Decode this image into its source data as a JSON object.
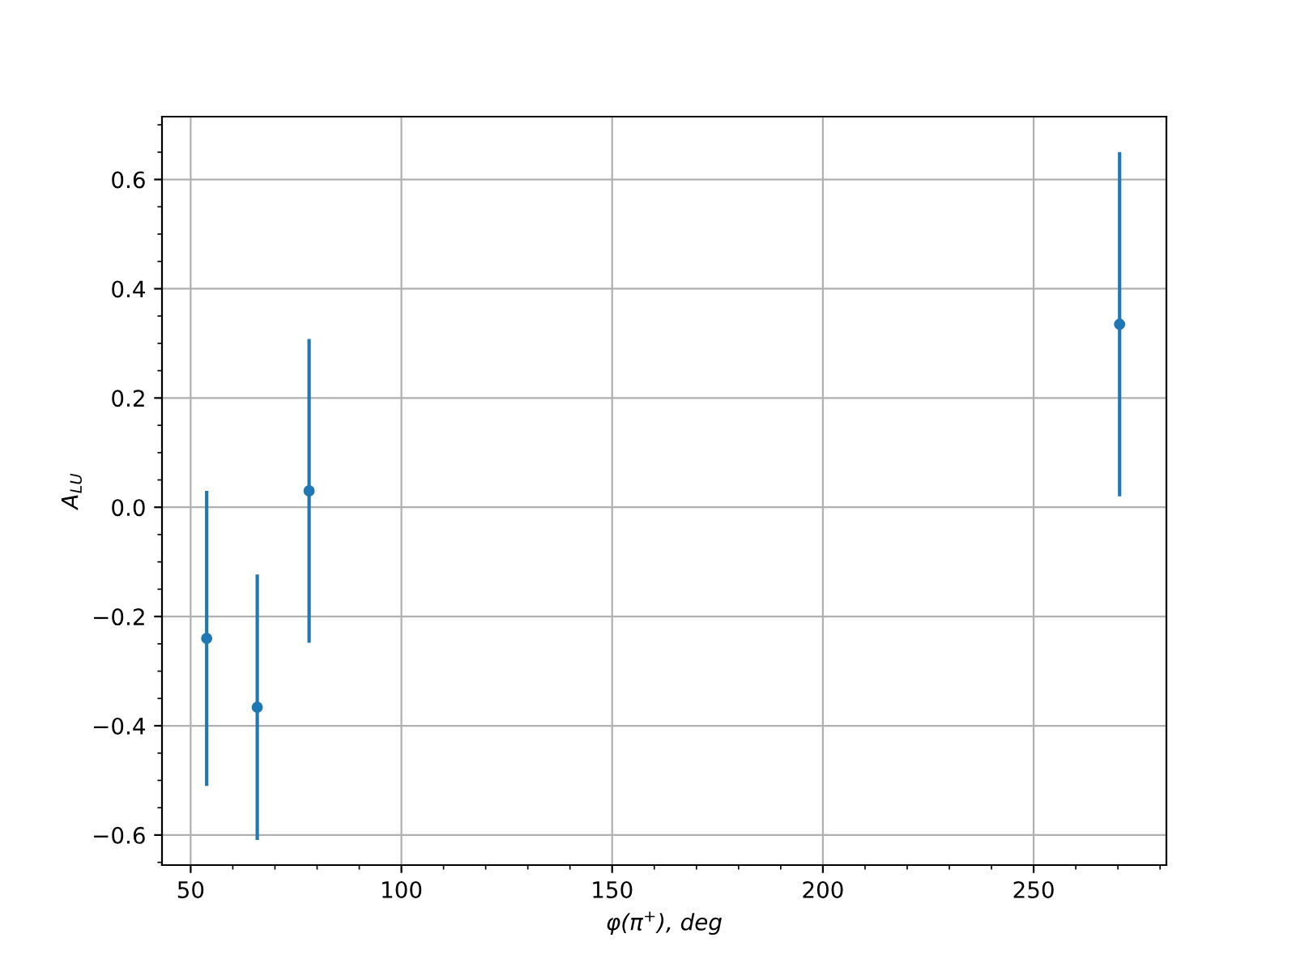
{
  "chart_data": {
    "type": "scatter",
    "xlabel": "φ(π$^{+}$), deg",
    "ylabel": "A$_{LU}$",
    "x": [
      53.8,
      65.8,
      78.1,
      270.4
    ],
    "series": [
      {
        "color": "#1f77b4",
        "values": [
          -0.24,
          -0.366,
          0.03,
          0.335
        ],
        "errors": [
          0.27,
          0.243,
          0.278,
          0.315
        ]
      }
    ],
    "xlim": [
      43.2,
      281.5
    ],
    "ylim": [
      -0.655,
      0.715
    ],
    "xticks": [
      50,
      100,
      150,
      200,
      250
    ],
    "yticks": [
      {
        "value": -0.6,
        "label": "−0.6"
      },
      {
        "value": -0.4,
        "label": "−0.4"
      },
      {
        "value": -0.2,
        "label": "−0.2"
      },
      {
        "value": 0.0,
        "label": "0.0"
      },
      0.2,
      0.4,
      0.6
    ],
    "grid": true,
    "marker": "circle"
  }
}
